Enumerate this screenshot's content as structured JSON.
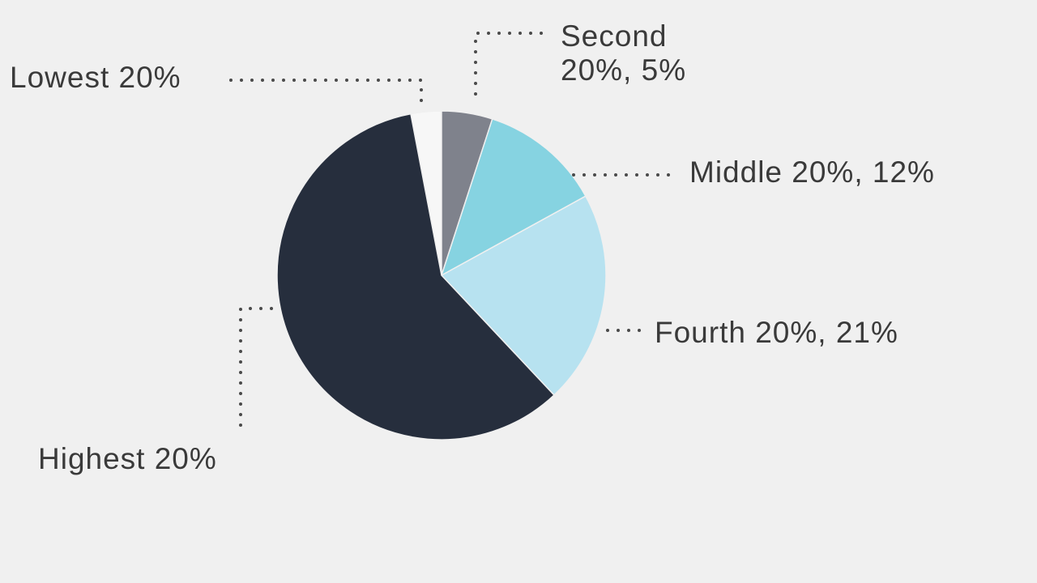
{
  "chart_data": {
    "type": "pie",
    "categories": [
      "Lowest 20%",
      "Second 20%",
      "Middle 20%",
      "Fourth 20%",
      "Highest 20%"
    ],
    "labels": [
      [
        "Lowest 20%"
      ],
      [
        "Second",
        "20%, 5%"
      ],
      [
        "Middle 20%, 12%"
      ],
      [
        "Fourth 20%, 21%"
      ],
      [
        "Highest 20%"
      ]
    ],
    "values": [
      3,
      5,
      12,
      21,
      59
    ],
    "colors": [
      "#f7f7f7",
      "#7f828c",
      "#86d3e1",
      "#b7e2f0",
      "#262e3d"
    ]
  }
}
